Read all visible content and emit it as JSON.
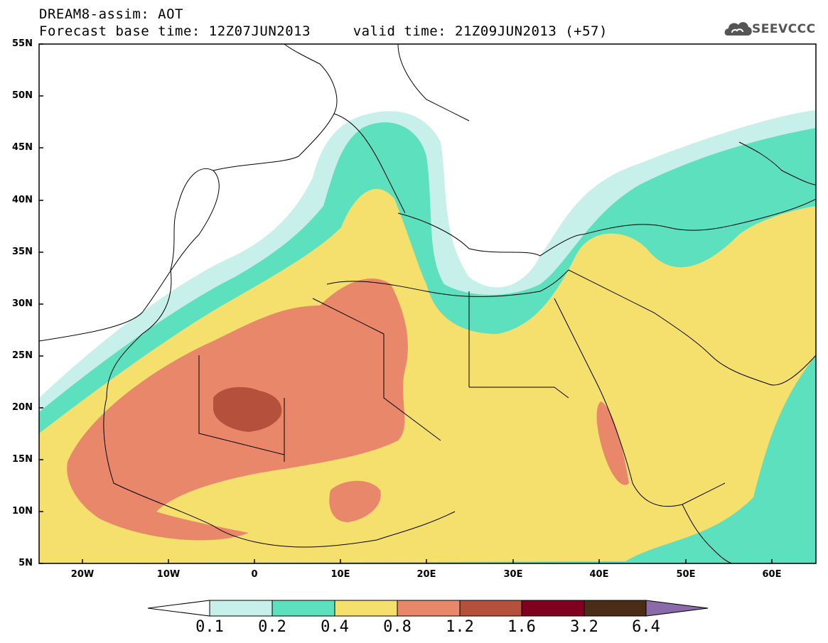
{
  "title": {
    "line1": "DREAM8-assim: AOT",
    "line2": "Forecast base time: 12Z07JUN2013     valid time: 21Z09JUN2013 (+57)"
  },
  "logo": {
    "text": "SEEVCCC"
  },
  "axes": {
    "lat_labels": [
      "55N",
      "50N",
      "45N",
      "40N",
      "35N",
      "30N",
      "25N",
      "20N",
      "15N",
      "10N",
      "5N"
    ],
    "lon_labels": [
      "20W",
      "10W",
      "0",
      "10E",
      "20E",
      "30E",
      "40E",
      "50E",
      "60E"
    ]
  },
  "colorbar": {
    "labels": [
      "0.1",
      "0.2",
      "0.4",
      "0.8",
      "1.2",
      "1.6",
      "3.2",
      "6.4"
    ],
    "colors": [
      "#ffffff",
      "#c8f0ea",
      "#5ce0bd",
      "#f5e06e",
      "#e8876a",
      "#b5503d",
      "#800020",
      "#4a2c17",
      "#8a6aa8"
    ]
  },
  "palette": {
    "very_light": "#c8f0ea",
    "light": "#5ce0bd",
    "yellow": "#f5e06e",
    "orange": "#e8876a",
    "red": "#b5503d"
  }
}
